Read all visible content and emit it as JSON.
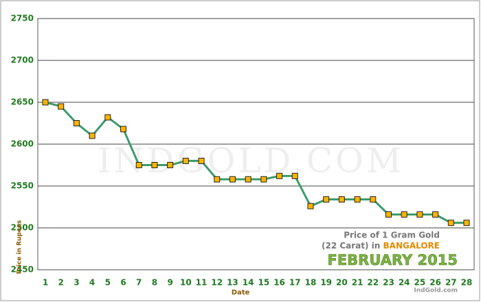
{
  "chart_data": {
    "type": "line",
    "title": "Price of 1 Gram Gold",
    "subtitle": "(22 Carat) in",
    "city": "BANGALORE",
    "period": "FEBRUARY 2015",
    "source": "IndGold.com",
    "watermark": "INDGOLD.COM",
    "x_label": "Date",
    "y_label": "Price in Rupees",
    "categories": [
      "1",
      "2",
      "3",
      "4",
      "5",
      "6",
      "7",
      "8",
      "9",
      "10",
      "11",
      "12",
      "13",
      "14",
      "15",
      "16",
      "17",
      "18",
      "19",
      "20",
      "21",
      "22",
      "23",
      "24",
      "25",
      "26",
      "27",
      "28"
    ],
    "series": [
      {
        "name": "Price",
        "color": "#3c9a6c",
        "marker_color": "#ffb300",
        "values": [
          2650,
          2645,
          2625,
          2610,
          2632,
          2618,
          2575,
          2575,
          2575,
          2580,
          2580,
          2558,
          2558,
          2558,
          2558,
          2562,
          2562,
          2526,
          2534,
          2534,
          2534,
          2534,
          2516,
          2516,
          2516,
          2516,
          2506,
          2506
        ]
      }
    ],
    "ylim": [
      2450,
      2750
    ],
    "yticks": [
      2450,
      2500,
      2550,
      2600,
      2650,
      2700,
      2750
    ],
    "grid": true
  }
}
